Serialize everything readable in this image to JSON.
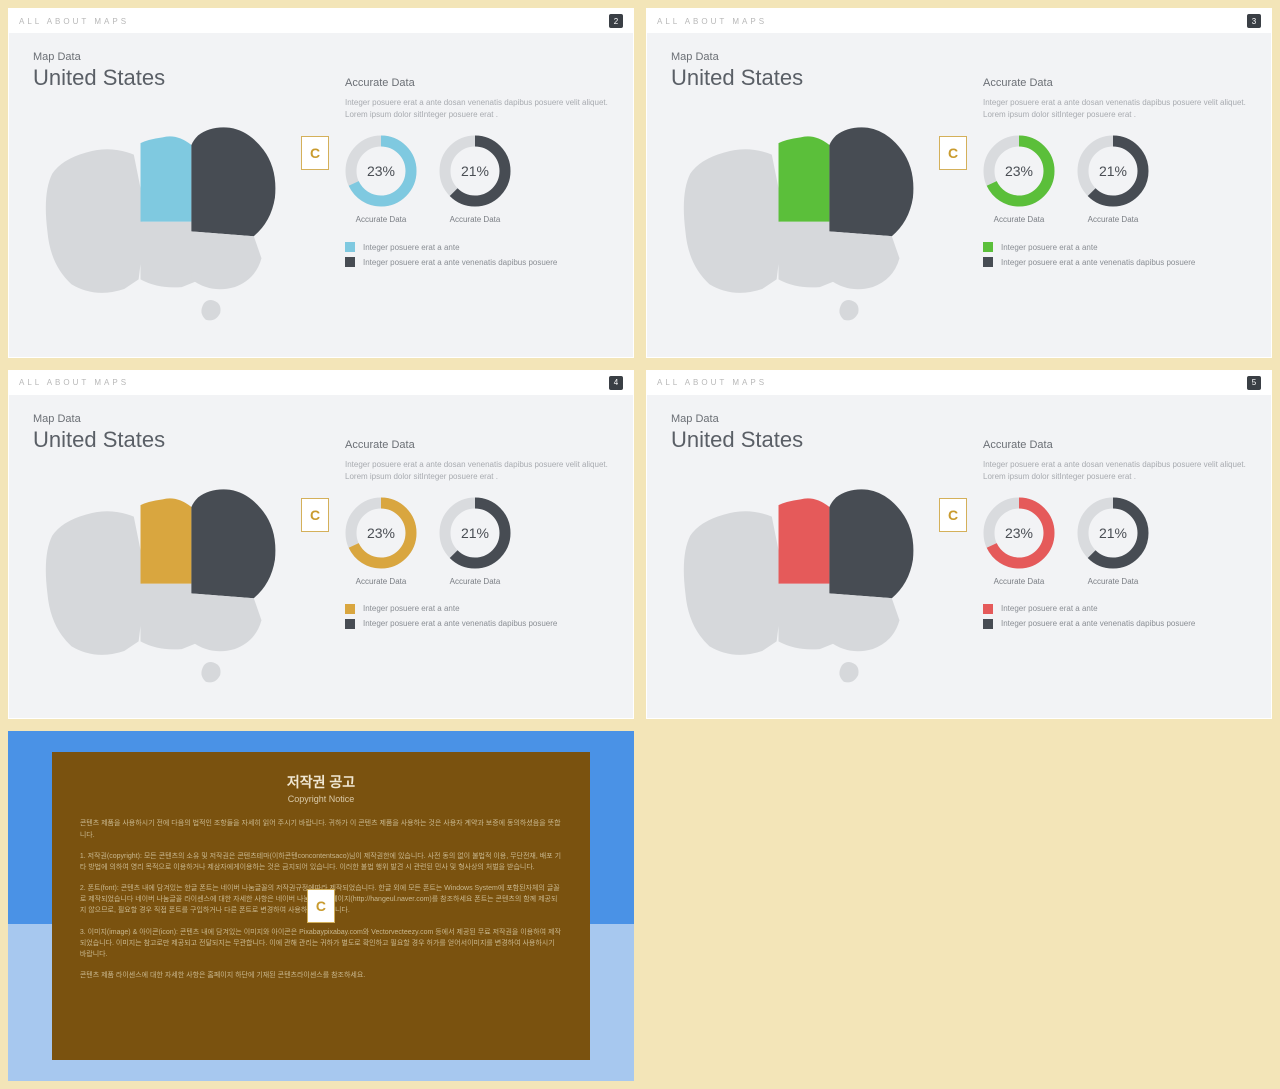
{
  "background_color": "#f3e5b8",
  "slide_header_title": "ALL ABOUT MAPS",
  "slides": [
    {
      "page": "2",
      "accent": "#7fc9e0",
      "accent_dark": "#7fc9e0"
    },
    {
      "page": "3",
      "accent": "#5bbf3a",
      "accent_dark": "#5bbf3a"
    },
    {
      "page": "4",
      "accent": "#d9a63f",
      "accent_dark": "#d9a63f"
    },
    {
      "page": "5",
      "accent": "#e55a5a",
      "accent_dark": "#e55a5a"
    }
  ],
  "map": {
    "subtitle": "Map Data",
    "title": "United States",
    "region_base_color": "#d6d8db",
    "region_dark_color": "#474c53"
  },
  "data_panel": {
    "title": "Accurate Data",
    "desc": "Integer posuere erat a ante dosan venenatis dapibus posuere velit aliquet. Lorem ipsum dolor sitInteger posuere erat .",
    "donut_track": "#d9dbde",
    "donuts": [
      {
        "value": 23,
        "label": "23%",
        "caption": "Accurate Data",
        "sweep": 245
      },
      {
        "value": 21,
        "label": "21%",
        "caption": "Accurate Data",
        "sweep": 225,
        "color": "#474c53"
      }
    ],
    "legend": [
      {
        "text": "Integer posuere erat a ante"
      },
      {
        "text": "Integer posuere erat a ante venenatis dapibus posuere",
        "color": "#474c53"
      }
    ]
  },
  "copyright": {
    "title_kr": "저작권 공고",
    "title_en": "Copyright Notice",
    "p1": "콘텐츠 제품을 사용하시기 전에 다음의 법적인 조항들을 자세히 읽어 주시기 바랍니다. 귀하가 이 콘텐츠 제품을 사용하는 것은 사용자 계약과 보증에 동의하셨음을 뜻합니다.",
    "p2": "1. 저작권(copyright): 모든 콘텐츠의 소유 및 저작권은 콘텐츠테마(이하콘텐concontentsaco)님이 제작권한에 있습니다. 사전 동의 없이 불법적 이용, 무단전재, 배포 기타 방법에 의하여 영리 목적으로 이용하거나 제삼자에게이용하는 것은 금지되어 있습니다. 이러한 불법 행위 발견 시 관련된 민사 및 형사상의 처벌을 받습니다.",
    "p3": "2. 폰트(font): 콘텐츠 내에 담겨있는 한글 폰트는 네이버 나눔글꼴의 저작권규정에따라 제작되었습니다. 한글 외에 모든 폰트는 Windows System에 포함된자체의 글꼴로 제작되었습니다 네이버 나눔글꼴 라이센스에 대한 자세한 사항은 네이버 나눔글꼴 홈페이지(http://hangeul.naver.com)를 참조하세요 폰트는 콘텐츠의 함께 제공되지 않으므로, 필요할 경우 직접 폰트를 구입하거나 다른 폰트로 변경하여 사용하시기 바랍니다.",
    "p4": "3. 이미지(image) & 아이콘(icon): 콘텐츠 내에 담겨있는 이미지와 아이콘은 Pixabaypixabay.com와 Vectorvecteezy.com 등에서 제공된 무료 저작권을 이용하여 제작되었습니다. 이미지는 참고로만 제공되고 전달되지는 무관합니다. 이에 관해 관리는 귀하가 별도로 확인하고 필요할 경우 허가를 얻어서이미지를 변경하여 사용하시기 바랍니다.",
    "p5": "콘텐츠 제품 라이센스에 대한 자세한 사항은 홈페이지 하단에 기재된 콘텐츠라이센스를 참조하세요."
  }
}
